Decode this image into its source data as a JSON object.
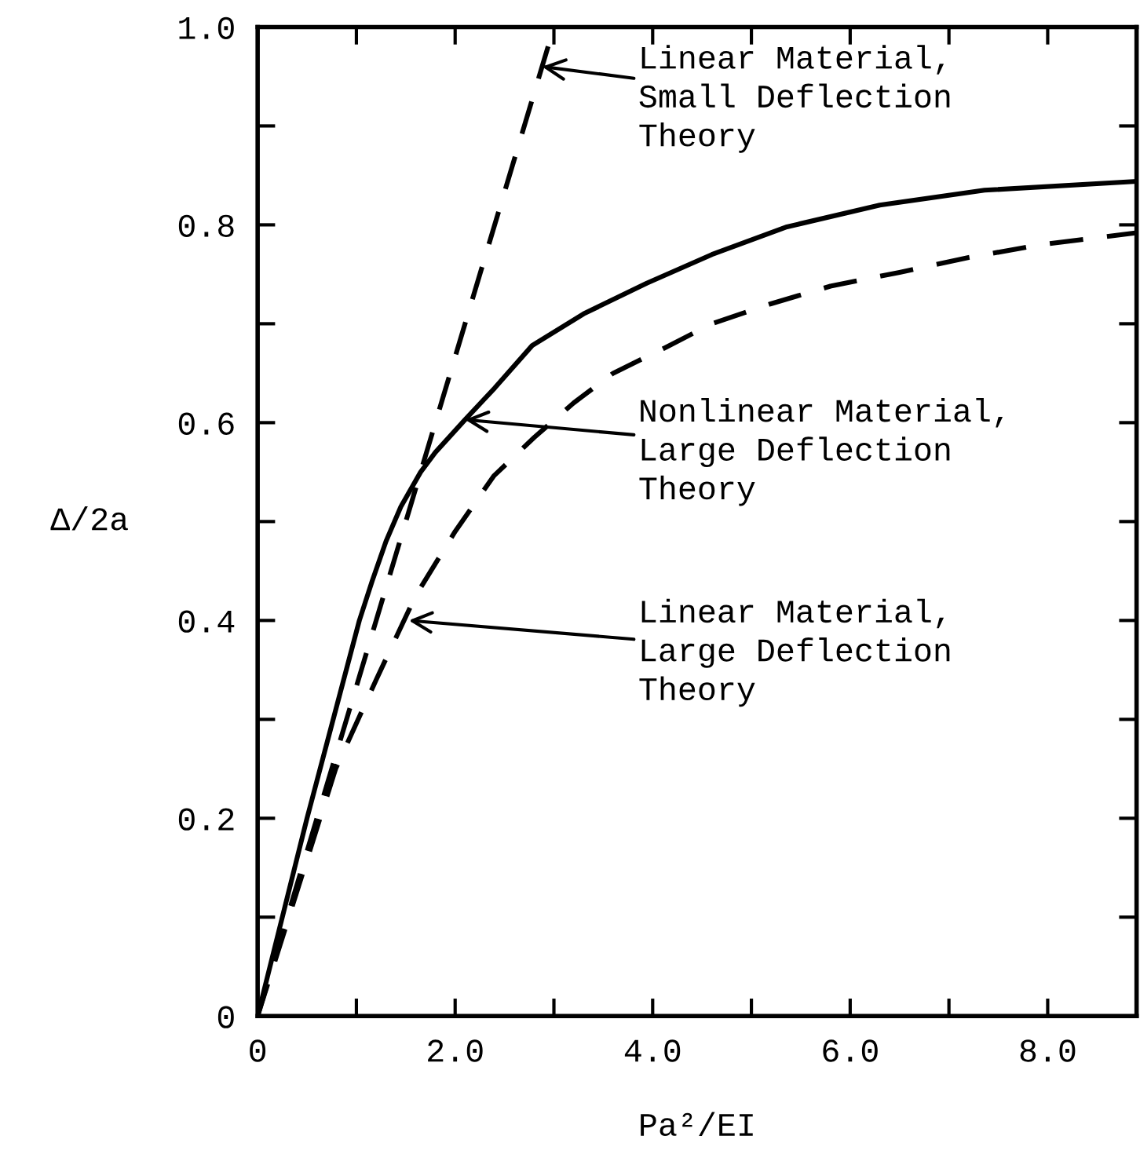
{
  "chart_data": {
    "type": "line",
    "xlabel": "Pa²/EI",
    "ylabel": "Δ/2a",
    "xlim": [
      0,
      8.9
    ],
    "ylim": [
      0,
      1.0
    ],
    "xticks": [
      0,
      {
        "value": 1,
        "label": null
      },
      {
        "value": 2,
        "label": "2.0"
      },
      {
        "value": 3,
        "label": null
      },
      {
        "value": 4,
        "label": "4.0"
      },
      {
        "value": 5,
        "label": null
      },
      {
        "value": 6,
        "label": "6.0"
      },
      {
        "value": 7,
        "label": null
      },
      {
        "value": 8,
        "label": "8.0"
      }
    ],
    "yticks": [
      0,
      {
        "value": 0.1,
        "label": null
      },
      {
        "value": 0.2,
        "label": "0.2"
      },
      {
        "value": 0.3,
        "label": null
      },
      {
        "value": 0.4,
        "label": "0.4"
      },
      {
        "value": 0.5,
        "label": null
      },
      {
        "value": 0.6,
        "label": "0.6"
      },
      {
        "value": 0.7,
        "label": null
      },
      {
        "value": 0.8,
        "label": "0.8"
      },
      {
        "value": 0.9,
        "label": null
      },
      {
        "value": 1.0,
        "label": "1.0"
      }
    ],
    "grid": false,
    "legend": false,
    "marker": "none",
    "series": [
      {
        "color": "#000000",
        "line_style": "dashed",
        "x": [
          0,
          3.0
        ],
        "values": [
          0,
          1.0
        ]
      },
      {
        "color": "#000000",
        "line_style": "solid",
        "x": [
          0,
          0.5,
          1.03,
          1.16,
          1.3,
          1.45,
          1.65,
          1.8,
          2.1,
          2.4,
          2.78,
          3.3,
          3.94,
          4.6,
          5.36,
          6.3,
          7.36,
          8.9
        ],
        "values": [
          0,
          0.2,
          0.4,
          0.44,
          0.48,
          0.515,
          0.55,
          0.57,
          0.603,
          0.635,
          0.678,
          0.71,
          0.741,
          0.77,
          0.798,
          0.82,
          0.835,
          0.844
        ]
      },
      {
        "color": "#000000",
        "line_style": "dashed",
        "x": [
          0,
          0.79,
          1.2,
          1.6,
          2.0,
          2.39,
          2.8,
          3.2,
          3.6,
          4.11,
          4.6,
          5.19,
          5.8,
          6.5,
          7.2,
          7.93,
          8.9
        ],
        "values": [
          0,
          0.25,
          0.34,
          0.425,
          0.49,
          0.546,
          0.585,
          0.62,
          0.65,
          0.675,
          0.7,
          0.72,
          0.738,
          0.752,
          0.767,
          0.78,
          0.792
        ]
      }
    ],
    "annotations": [
      {
        "text": "Linear Material,\nSmall Deflection\nTheory",
        "x": 2.88,
        "y": 0.96
      },
      {
        "text": "Nonlinear Material,\nLarge Deflection\nTheory",
        "x": 2.1,
        "y": 0.603
      },
      {
        "text": "Linear Material,\nLarge Deflection\nTheory",
        "x": 1.53,
        "y": 0.4
      }
    ]
  }
}
